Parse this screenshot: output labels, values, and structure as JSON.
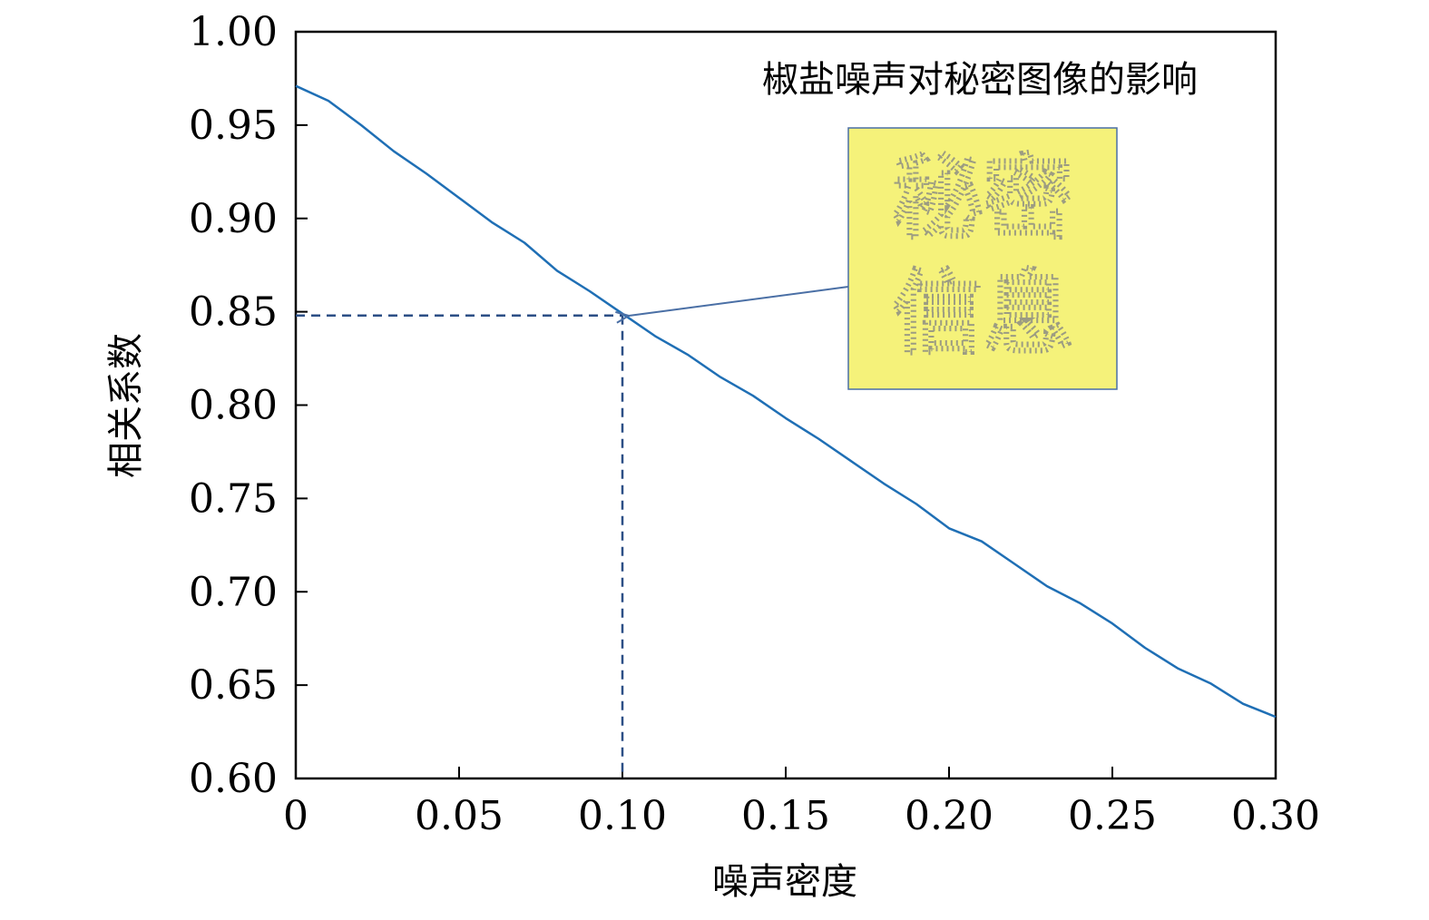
{
  "chart_data": {
    "type": "line",
    "title": "椒盐噪声对秘密图像的影响",
    "xlabel": "噪声密度",
    "ylabel": "相关系数",
    "xlim": [
      0,
      0.3
    ],
    "ylim": [
      0.6,
      1.0
    ],
    "x_ticks": [
      "0",
      "0.05",
      "0.10",
      "0.15",
      "0.20",
      "0.25",
      "0.30"
    ],
    "y_ticks": [
      "0.60",
      "0.65",
      "0.70",
      "0.75",
      "0.80",
      "0.85",
      "0.90",
      "0.95",
      "1.00"
    ],
    "grid": false,
    "series": [
      {
        "color": "#1f6fb5",
        "x": [
          0,
          0.01,
          0.02,
          0.03,
          0.04,
          0.05,
          0.06,
          0.07,
          0.08,
          0.09,
          0.1,
          0.11,
          0.12,
          0.13,
          0.14,
          0.15,
          0.16,
          0.17,
          0.18,
          0.19,
          0.2,
          0.21,
          0.22,
          0.23,
          0.24,
          0.25,
          0.26,
          0.27,
          0.28,
          0.29,
          0.3
        ],
        "y": [
          0.971,
          0.963,
          0.95,
          0.936,
          0.924,
          0.911,
          0.898,
          0.887,
          0.872,
          0.861,
          0.849,
          0.837,
          0.827,
          0.815,
          0.805,
          0.793,
          0.782,
          0.77,
          0.758,
          0.747,
          0.734,
          0.727,
          0.715,
          0.703,
          0.694,
          0.683,
          0.67,
          0.659,
          0.651,
          0.64,
          0.633
        ]
      }
    ],
    "reference_point": {
      "x": 0.1,
      "y": 0.848
    },
    "inset": {
      "text_line1": "秘密",
      "text_line2": "信息",
      "background": "#f5f27a",
      "border": "#4a6fa5"
    }
  }
}
